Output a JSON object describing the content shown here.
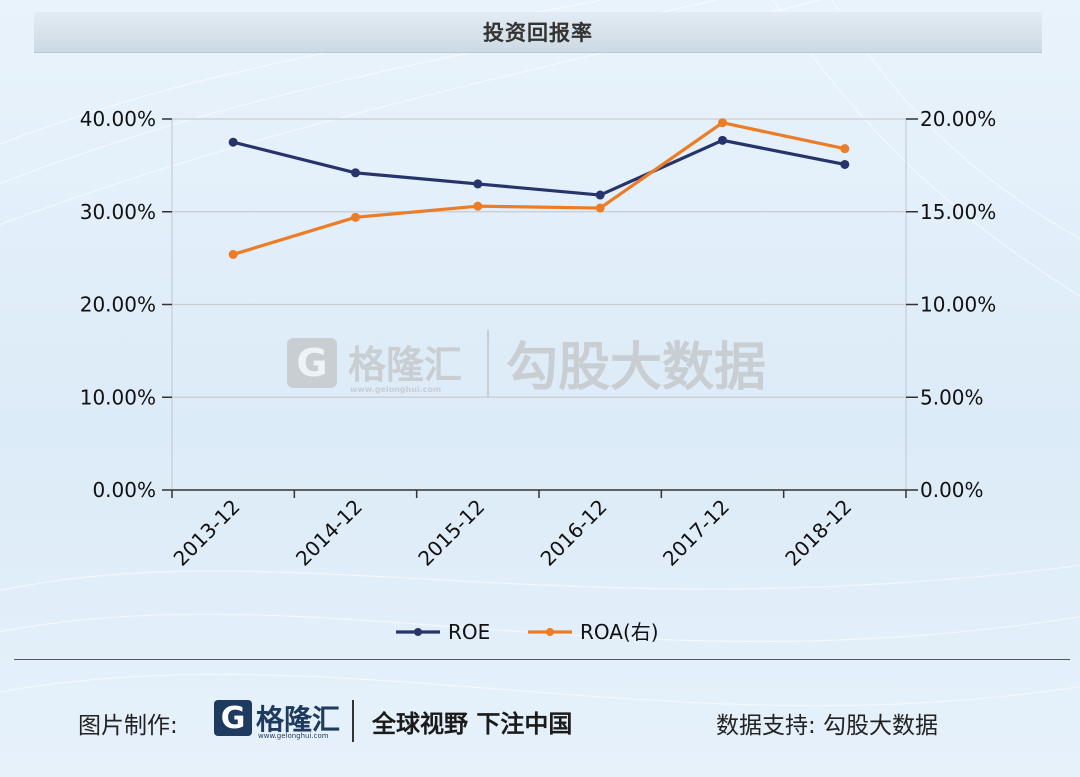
{
  "title": "投资回报率",
  "watermark": {
    "brand": "格隆汇",
    "url": "www.gelonghui.com",
    "product": "勾股大数据",
    "logo_letter": "G"
  },
  "footer": {
    "credit_label": "图片制作:",
    "logo_letter": "G",
    "logo_name": "格隆汇",
    "logo_url": "www.gelonghui.com",
    "slogan": "全球视野 下注中国",
    "support": "数据支持:  勾股大数据"
  },
  "colors": {
    "roe": "#27346b",
    "roa": "#ec7c25",
    "grid": "#c9ccd0",
    "axis": "#333333"
  },
  "chart_data": {
    "type": "line",
    "title": "投资回报率",
    "categories": [
      "2013-12",
      "2014-12",
      "2015-12",
      "2016-12",
      "2017-12",
      "2018-12"
    ],
    "series": [
      {
        "name": "ROE",
        "axis": "left",
        "values": [
          37.5,
          34.2,
          33.0,
          31.8,
          37.7,
          35.1
        ]
      },
      {
        "name": "ROA(右)",
        "axis": "right",
        "values": [
          12.7,
          14.7,
          15.3,
          15.2,
          19.8,
          18.4
        ]
      }
    ],
    "y_left": {
      "ylim": [
        0,
        40
      ],
      "ticks": [
        "0.00%",
        "10.00%",
        "20.00%",
        "30.00%",
        "40.00%"
      ]
    },
    "y_right": {
      "ylim": [
        0,
        20
      ],
      "ticks": [
        "0.00%",
        "5.00%",
        "10.00%",
        "15.00%",
        "20.00%"
      ]
    },
    "grid": true,
    "legend": "bottom-center"
  }
}
